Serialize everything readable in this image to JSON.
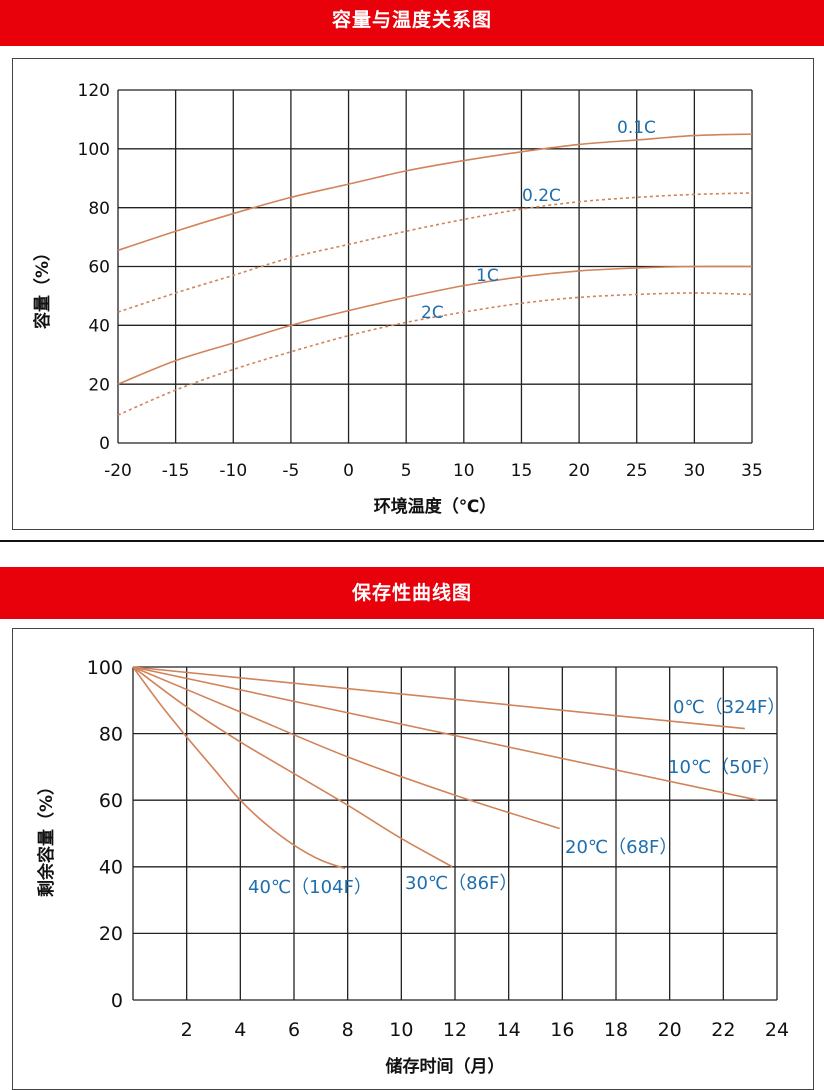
{
  "banners": {
    "top": "容量与温度关系图",
    "bottom": "保存性曲线图"
  },
  "colors": {
    "banner": "#e8000b",
    "curve": "#d2835a",
    "curve_label": "#1f6eae",
    "grid": "#222222"
  },
  "chart_data": [
    {
      "type": "line",
      "title": "容量与温度关系图",
      "xlabel": "环境温度（℃）",
      "ylabel": "容量（%）",
      "xlim": [
        -20,
        35
      ],
      "ylim": [
        0,
        120
      ],
      "xticks": [
        -20,
        -15,
        -10,
        -5,
        0,
        5,
        10,
        15,
        20,
        25,
        30,
        35
      ],
      "yticks": [
        0,
        20,
        40,
        60,
        80,
        100,
        120
      ],
      "grid": true,
      "series": [
        {
          "name": "0.1C",
          "line": "solid",
          "x": [
            -20,
            -15,
            -10,
            -5,
            0,
            5,
            10,
            15,
            20,
            25,
            30,
            35
          ],
          "y": [
            65.5,
            72,
            78,
            83.5,
            88,
            92.5,
            96,
            99,
            101.5,
            103,
            104.5,
            105
          ]
        },
        {
          "name": "0.2C",
          "line": "dashed",
          "x": [
            -20,
            -15,
            -10,
            -5,
            0,
            5,
            10,
            15,
            20,
            25,
            30,
            35
          ],
          "y": [
            44.5,
            51,
            57,
            63,
            67.5,
            72,
            76,
            79.5,
            82,
            83.5,
            84.5,
            85
          ]
        },
        {
          "name": "1C",
          "line": "solid",
          "x": [
            -20,
            -15,
            -10,
            -5,
            0,
            5,
            10,
            15,
            20,
            25,
            30,
            35
          ],
          "y": [
            20,
            28,
            34,
            40,
            45,
            49.5,
            53.5,
            56.5,
            58.5,
            59.5,
            60,
            60
          ]
        },
        {
          "name": "2C",
          "line": "dashed",
          "x": [
            -20,
            -15,
            -10,
            -5,
            0,
            5,
            10,
            15,
            20,
            25,
            30,
            35
          ],
          "y": [
            9.5,
            18,
            25,
            31,
            36.5,
            41,
            44.5,
            47.5,
            49.5,
            50.5,
            51,
            50.5
          ]
        }
      ]
    },
    {
      "type": "line",
      "title": "保存性曲线图",
      "xlabel": "储存时间（月）",
      "ylabel": "剩余容量（%）",
      "xlim": [
        0,
        24
      ],
      "ylim": [
        0,
        100
      ],
      "xticks": [
        2,
        4,
        6,
        8,
        10,
        12,
        14,
        16,
        18,
        20,
        22,
        24
      ],
      "yticks": [
        0,
        20,
        40,
        60,
        80,
        100
      ],
      "grid": true,
      "series": [
        {
          "name": "0℃（324F）",
          "x": [
            0,
            22.8
          ],
          "y": [
            100,
            81.5
          ]
        },
        {
          "name": "10℃（50F）",
          "x": [
            0,
            23.3
          ],
          "y": [
            100,
            60
          ]
        },
        {
          "name": "20℃（68F）",
          "x": [
            0,
            4,
            8,
            12,
            15.9
          ],
          "y": [
            100,
            86.5,
            73,
            61.5,
            51.5
          ]
        },
        {
          "name": "30℃（86F）",
          "x": [
            0,
            2,
            4,
            6,
            8,
            10,
            11.9
          ],
          "y": [
            100,
            88,
            77.5,
            68,
            58.5,
            48.5,
            40
          ]
        },
        {
          "name": "40℃（104F）",
          "x": [
            0,
            1,
            2,
            3,
            4,
            5,
            6,
            7,
            7.9
          ],
          "y": [
            100,
            89,
            79,
            69.5,
            60,
            52.5,
            46.5,
            42,
            39.5
          ]
        }
      ]
    }
  ]
}
